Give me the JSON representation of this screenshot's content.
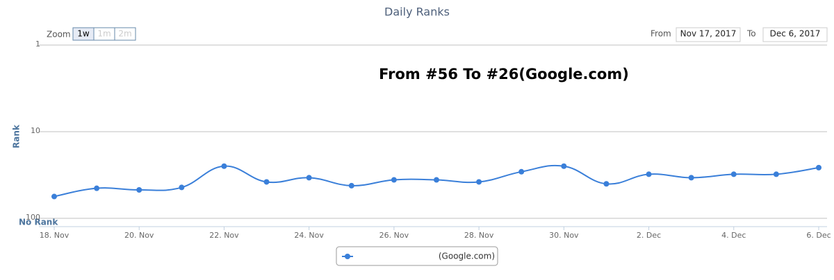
{
  "chart_data": {
    "type": "line",
    "title": "Daily Ranks",
    "annotation": "From #56 To #26(Google.com)",
    "zoom_label": "Zoom",
    "zoom_buttons": [
      "1w",
      "1m",
      "2m"
    ],
    "from_label": "From",
    "from_date": "Nov 17, 2017",
    "to_label": "To",
    "to_date": "Dec 6, 2017",
    "y_label": "Rank",
    "no_rank_label": "No Rank",
    "categories": [
      "18. Nov",
      null,
      "20. Nov",
      null,
      "22. Nov",
      null,
      "24. Nov",
      null,
      "26. Nov",
      null,
      "28. Nov",
      null,
      "30. Nov",
      null,
      "2. Dec",
      null,
      "4. Dec",
      null,
      "6. Dec"
    ],
    "series": [
      {
        "name": "(Google.com)",
        "color": "#3a7fd9",
        "values": [
          56,
          45,
          47,
          44,
          25,
          38,
          34,
          42,
          36,
          36,
          38,
          29,
          25,
          40,
          31,
          34,
          31,
          31,
          26
        ]
      }
    ],
    "ylim": [
      1,
      100
    ],
    "yticks": [
      1,
      10,
      100
    ],
    "log_scale": true,
    "reversed": true,
    "grid": true
  }
}
